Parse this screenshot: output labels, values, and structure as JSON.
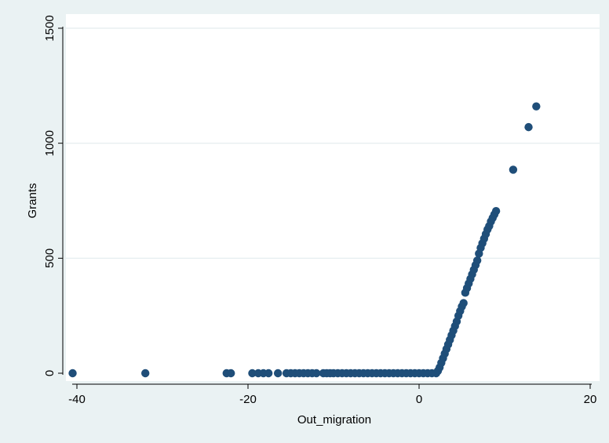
{
  "chart_data": {
    "type": "scatter",
    "title": "",
    "xlabel": "Out_migration",
    "ylabel": "Grants",
    "xlim": [
      -42,
      20
    ],
    "ylim": [
      0,
      1500
    ],
    "x_ticks": [
      -40,
      -20,
      0,
      20
    ],
    "y_ticks": [
      0,
      500,
      1000,
      1500
    ],
    "grid": "horizontal",
    "legend": "none",
    "colors": {
      "background": "#eaf2f3",
      "plot_area": "#ffffff",
      "marker": "#1f4e79",
      "grid": "#e3ecee"
    },
    "series": [
      {
        "points": [
          [
            -40.5,
            0
          ],
          [
            -32,
            0
          ],
          [
            -22.5,
            0
          ],
          [
            -22,
            0
          ],
          [
            -19.5,
            0
          ],
          [
            -18.8,
            0
          ],
          [
            -18.2,
            0
          ],
          [
            -17.6,
            0
          ],
          [
            -16.5,
            0
          ],
          [
            -15.5,
            0
          ],
          [
            -15,
            0
          ],
          [
            -14.5,
            0
          ],
          [
            -14,
            0
          ],
          [
            -13.5,
            0
          ],
          [
            -13,
            0
          ],
          [
            -12.5,
            0
          ],
          [
            -12,
            0
          ],
          [
            -11.2,
            0
          ],
          [
            -10.8,
            0
          ],
          [
            -10.4,
            0
          ],
          [
            -10,
            0
          ],
          [
            -9.5,
            0
          ],
          [
            -9,
            0
          ],
          [
            -8.5,
            0
          ],
          [
            -8,
            0
          ],
          [
            -7.5,
            0
          ],
          [
            -7,
            0
          ],
          [
            -6.5,
            0
          ],
          [
            -6,
            0
          ],
          [
            -5.5,
            0
          ],
          [
            -5,
            0
          ],
          [
            -4.5,
            0
          ],
          [
            -4,
            0
          ],
          [
            -3.5,
            0
          ],
          [
            -3,
            0
          ],
          [
            -2.5,
            0
          ],
          [
            -2,
            0
          ],
          [
            -1.5,
            0
          ],
          [
            -1,
            0
          ],
          [
            -0.5,
            0
          ],
          [
            0,
            0
          ],
          [
            0.5,
            0
          ],
          [
            1,
            0
          ],
          [
            1.5,
            0
          ],
          [
            2,
            0
          ],
          [
            2.2,
            10
          ],
          [
            2.4,
            25
          ],
          [
            2.6,
            45
          ],
          [
            2.8,
            65
          ],
          [
            3.0,
            85
          ],
          [
            3.2,
            105
          ],
          [
            3.4,
            125
          ],
          [
            3.6,
            145
          ],
          [
            3.8,
            165
          ],
          [
            4.0,
            185
          ],
          [
            4.2,
            205
          ],
          [
            4.4,
            225
          ],
          [
            4.6,
            250
          ],
          [
            4.8,
            270
          ],
          [
            5.0,
            290
          ],
          [
            5.2,
            305
          ],
          [
            5.4,
            350
          ],
          [
            5.6,
            370
          ],
          [
            5.8,
            390
          ],
          [
            6.0,
            410
          ],
          [
            6.2,
            430
          ],
          [
            6.4,
            450
          ],
          [
            6.6,
            470
          ],
          [
            6.8,
            490
          ],
          [
            7.0,
            520
          ],
          [
            7.2,
            545
          ],
          [
            7.4,
            565
          ],
          [
            7.6,
            585
          ],
          [
            7.8,
            605
          ],
          [
            8.0,
            625
          ],
          [
            8.2,
            640
          ],
          [
            8.4,
            660
          ],
          [
            8.6,
            675
          ],
          [
            8.8,
            690
          ],
          [
            9.0,
            705
          ],
          [
            11,
            885
          ],
          [
            12.8,
            1070
          ],
          [
            13.7,
            1160
          ]
        ]
      }
    ]
  }
}
